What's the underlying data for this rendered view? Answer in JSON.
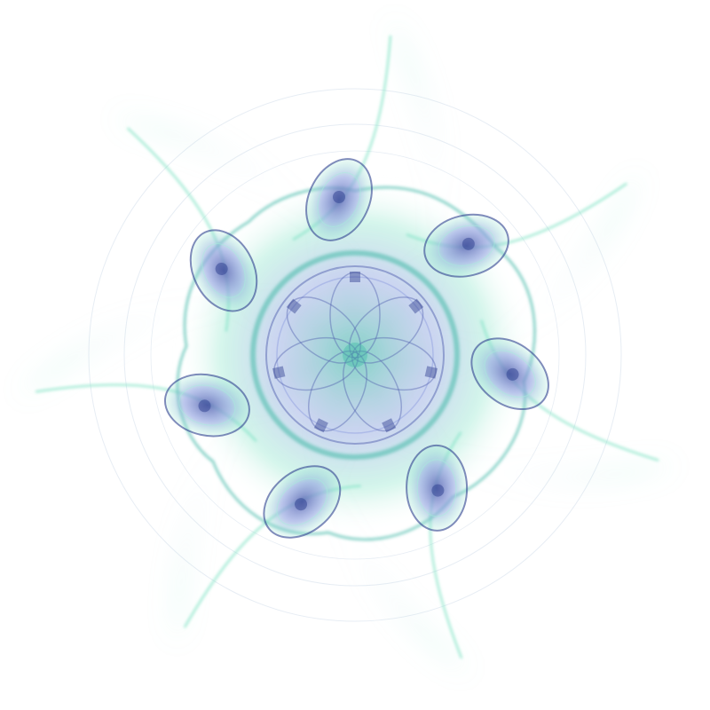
{
  "image": {
    "subject": "fractal-flame",
    "arm_count": 7,
    "colors": {
      "background": "#ffffff",
      "mint": "#7fe3c4",
      "teal": "#3fb8a6",
      "seafoam": "#a8f0dc",
      "indigo": "#5563b0",
      "periwinkle": "#8fa0e0",
      "deep_blue": "#2e3f8f",
      "haze": "#c9d6e6"
    }
  }
}
